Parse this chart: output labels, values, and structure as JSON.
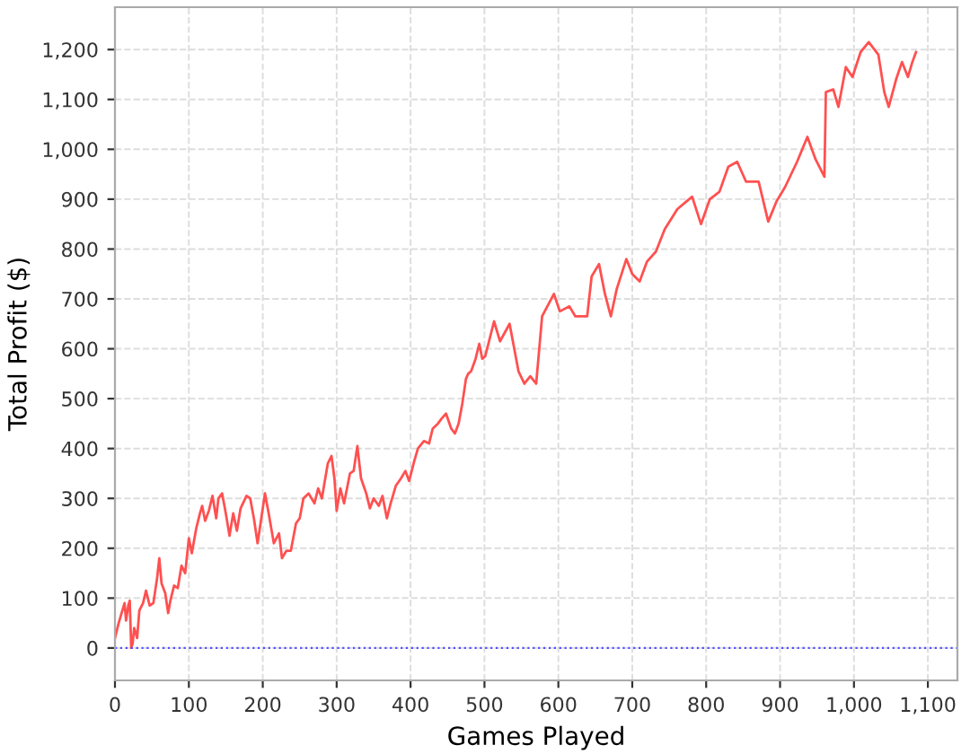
{
  "chart_data": {
    "type": "line",
    "xlabel": "Games Played",
    "ylabel": "Total Profit ($)",
    "series": [
      {
        "color": "#ff5050",
        "x": [
          0,
          5,
          10,
          13,
          15,
          18,
          20,
          22,
          24,
          26,
          30,
          33,
          38,
          42,
          47,
          52,
          57,
          60,
          63,
          68,
          72,
          75,
          80,
          85,
          90,
          95,
          100,
          104,
          110,
          115,
          118,
          122,
          127,
          132,
          137,
          140,
          145,
          150,
          155,
          160,
          165,
          170,
          178,
          183,
          188,
          193,
          198,
          203,
          208,
          215,
          222,
          226,
          232,
          238,
          245,
          250,
          255,
          262,
          270,
          275,
          280,
          288,
          293,
          297,
          300,
          305,
          310,
          318,
          323,
          328,
          333,
          340,
          345,
          350,
          357,
          362,
          368,
          373,
          380,
          387,
          393,
          398,
          405,
          410,
          418,
          425,
          430,
          437,
          442,
          448,
          455,
          460,
          465,
          470,
          475,
          478,
          482,
          488,
          493,
          497,
          501,
          513,
          521,
          534,
          546,
          554,
          562,
          570,
          578,
          594,
          602,
          615,
          623,
          639,
          645,
          655,
          663,
          671,
          679,
          692,
          700,
          710,
          720,
          732,
          744,
          761,
          781,
          793,
          805,
          818,
          830,
          842,
          854,
          871,
          884,
          895,
          907,
          923,
          937,
          948,
          960,
          962,
          972,
          979,
          989,
          998,
          1009,
          1020,
          1033,
          1041,
          1047,
          1057,
          1065,
          1073,
          1079,
          1084
        ],
        "values": [
          20,
          50,
          75,
          90,
          55,
          85,
          95,
          0,
          10,
          40,
          20,
          75,
          90,
          115,
          85,
          90,
          140,
          180,
          130,
          110,
          70,
          95,
          125,
          120,
          165,
          150,
          220,
          190,
          240,
          270,
          285,
          255,
          275,
          305,
          260,
          300,
          310,
          270,
          225,
          270,
          235,
          280,
          305,
          300,
          260,
          210,
          260,
          310,
          270,
          210,
          230,
          180,
          195,
          195,
          250,
          260,
          300,
          310,
          290,
          320,
          300,
          370,
          385,
          340,
          275,
          320,
          290,
          350,
          355,
          405,
          340,
          310,
          280,
          300,
          285,
          305,
          260,
          290,
          325,
          340,
          355,
          335,
          375,
          400,
          415,
          410,
          440,
          450,
          460,
          470,
          440,
          430,
          450,
          490,
          540,
          550,
          555,
          580,
          610,
          580,
          585,
          655,
          615,
          650,
          555,
          530,
          545,
          530,
          665,
          710,
          675,
          685,
          665,
          665,
          745,
          770,
          710,
          665,
          720,
          780,
          750,
          735,
          775,
          795,
          840,
          880,
          905,
          850,
          900,
          915,
          965,
          975,
          935,
          935,
          855,
          895,
          925,
          975,
          1025,
          980,
          945,
          1115,
          1120,
          1085,
          1165,
          1145,
          1195,
          1215,
          1190,
          1115,
          1085,
          1140,
          1175,
          1145,
          1175,
          1195
        ]
      }
    ],
    "xlim": [
      0,
      1140
    ],
    "ylim": [
      -65,
      1285
    ],
    "xticks": [
      0,
      100,
      200,
      300,
      400,
      500,
      600,
      700,
      800,
      900,
      {
        "value": 1000,
        "label": "1,000"
      },
      {
        "value": 1100,
        "label": "1,100"
      }
    ],
    "yticks": [
      0,
      100,
      200,
      300,
      400,
      500,
      600,
      700,
      800,
      900,
      {
        "value": 1000,
        "label": "1,000"
      },
      {
        "value": 1100,
        "label": "1,100"
      },
      {
        "value": 1200,
        "label": "1,200"
      }
    ],
    "ref_lines": [
      {
        "axis": "y",
        "value": 0,
        "color": "#5050ff",
        "line_style": "dotted"
      }
    ],
    "grid": true,
    "legend": false,
    "marker": "none",
    "line_style": "solid"
  }
}
